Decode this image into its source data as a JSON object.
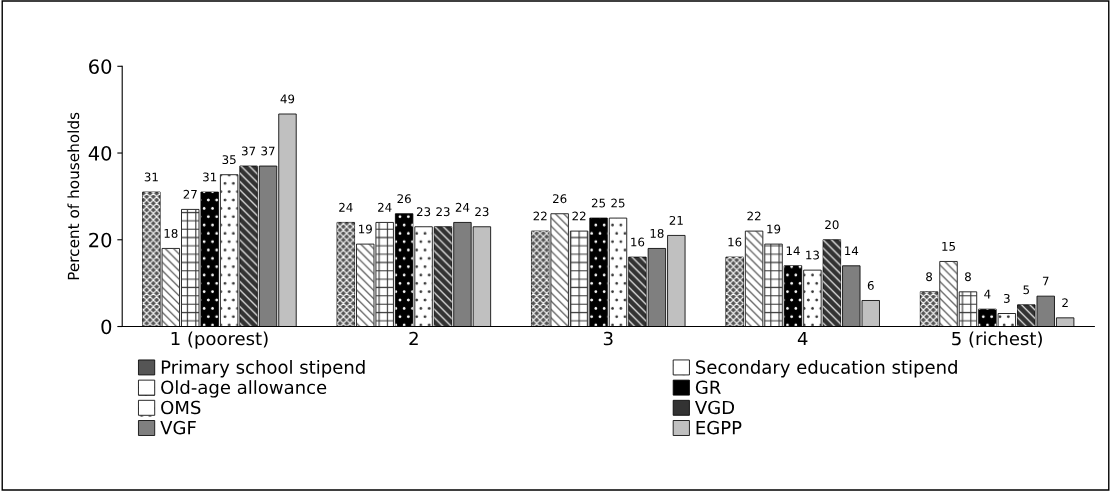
{
  "chart_data": {
    "type": "bar",
    "ylabel": "Percent of households",
    "categories": [
      "1 (poorest)",
      "2",
      "3",
      "4",
      "5 (richest)"
    ],
    "series": [
      {
        "name": "Primary school stipend",
        "color": "#555555",
        "values": [
          31,
          24,
          22,
          16,
          8
        ]
      },
      {
        "name": "Secondary education stipend",
        "color": "#ffffff",
        "values": [
          18,
          19,
          26,
          22,
          15
        ]
      },
      {
        "name": "Old-age allowance",
        "color": "#ffffff",
        "values": [
          27,
          24,
          22,
          19,
          8
        ]
      },
      {
        "name": "GR",
        "color": "#000000",
        "values": [
          31,
          26,
          25,
          14,
          4
        ]
      },
      {
        "name": "OMS",
        "color": "#ffffff",
        "values": [
          35,
          23,
          25,
          13,
          3
        ]
      },
      {
        "name": "VGD",
        "color": "#333333",
        "values": [
          37,
          23,
          16,
          20,
          5
        ]
      },
      {
        "name": "VGF",
        "color": "#7f7f7f",
        "values": [
          37,
          24,
          18,
          14,
          7
        ]
      },
      {
        "name": "EGPP",
        "color": "#c0c0c0",
        "values": [
          49,
          23,
          21,
          6,
          2
        ]
      }
    ],
    "ylim": [
      0,
      60
    ],
    "yticks": [
      0,
      20,
      40,
      60
    ],
    "grid": false,
    "legend": "bottom",
    "data_labels": true
  }
}
